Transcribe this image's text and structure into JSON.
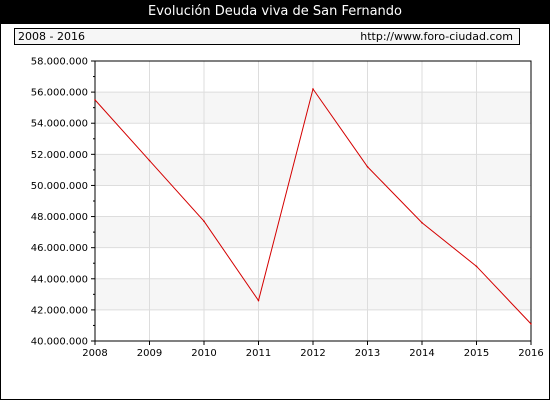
{
  "title": "Evolución Deuda viva de San Fernando",
  "subheader": {
    "range": "2008 - 2016",
    "url": "http://www.foro-ciudad.com"
  },
  "colors": {
    "line": "#d40000",
    "band": "#f6f6f6",
    "grid": "#dddddd"
  },
  "chart_data": {
    "type": "line",
    "title": "Evolución Deuda viva de San Fernando",
    "xlabel": "",
    "ylabel": "",
    "x": [
      2008,
      2009,
      2010,
      2011,
      2012,
      2013,
      2014,
      2015,
      2016
    ],
    "series": [
      {
        "values": [
          55500000,
          51600000,
          47700000,
          42600000,
          56200000,
          51200000,
          47600000,
          44800000,
          41100000
        ]
      }
    ],
    "ylim": [
      40000000,
      58000000
    ],
    "xlim": [
      2008,
      2016
    ],
    "y_ticks": [
      "40.000.000",
      "42.000.000",
      "44.000.000",
      "46.000.000",
      "48.000.000",
      "50.000.000",
      "52.000.000",
      "54.000.000",
      "56.000.000",
      "58.000.000"
    ],
    "x_ticks": [
      "2008",
      "2009",
      "2010",
      "2011",
      "2012",
      "2013",
      "2014",
      "2015",
      "2016"
    ],
    "grid": true,
    "legend": "none"
  }
}
